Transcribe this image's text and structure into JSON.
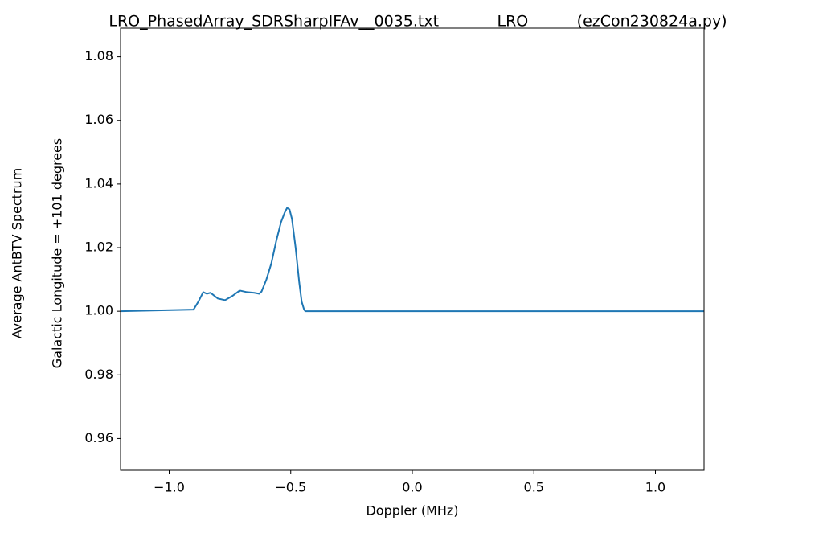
{
  "chart_data": {
    "type": "line",
    "title": "LRO_PhasedArray_SDRSharpIFAv__0035.txt            LRO          (ezCon230824a.py)",
    "x_label": "Doppler (MHz)",
    "y_label": [
      "Average AntBTV Spectrum",
      "Galactic Longitude = +101 degrees"
    ],
    "x": [
      -1.2,
      -0.9,
      -0.88,
      -0.86,
      -0.845,
      -0.83,
      -0.8,
      -0.77,
      -0.74,
      -0.71,
      -0.68,
      -0.65,
      -0.63,
      -0.62,
      -0.6,
      -0.58,
      -0.56,
      -0.54,
      -0.525,
      -0.515,
      -0.505,
      -0.495,
      -0.48,
      -0.465,
      -0.455,
      -0.445,
      -0.44,
      1.2
    ],
    "series": [
      {
        "name": "spectrum",
        "color": "#1f77b4",
        "values": [
          1.0,
          1.0005,
          1.003,
          1.006,
          1.0055,
          1.0058,
          1.004,
          1.0035,
          1.0048,
          1.0065,
          1.006,
          1.0058,
          1.0055,
          1.0062,
          1.01,
          1.015,
          1.022,
          1.028,
          1.031,
          1.0325,
          1.032,
          1.029,
          1.02,
          1.009,
          1.003,
          1.0005,
          1.0,
          1.0
        ]
      }
    ],
    "xlim": [
      -1.2,
      1.2
    ],
    "ylim": [
      0.95,
      1.089
    ],
    "xticks": [
      {
        "value": -1.0,
        "label": "−1.0"
      },
      {
        "value": -0.5,
        "label": "−0.5"
      },
      {
        "value": 0.0,
        "label": "0.0"
      },
      {
        "value": 0.5,
        "label": "0.5"
      },
      {
        "value": 1.0,
        "label": "1.0"
      }
    ],
    "yticks": [
      0.96,
      0.98,
      {
        "value": 1.0,
        "label": "1.00"
      },
      1.02,
      1.04,
      1.06,
      1.08
    ],
    "grid": false
  }
}
